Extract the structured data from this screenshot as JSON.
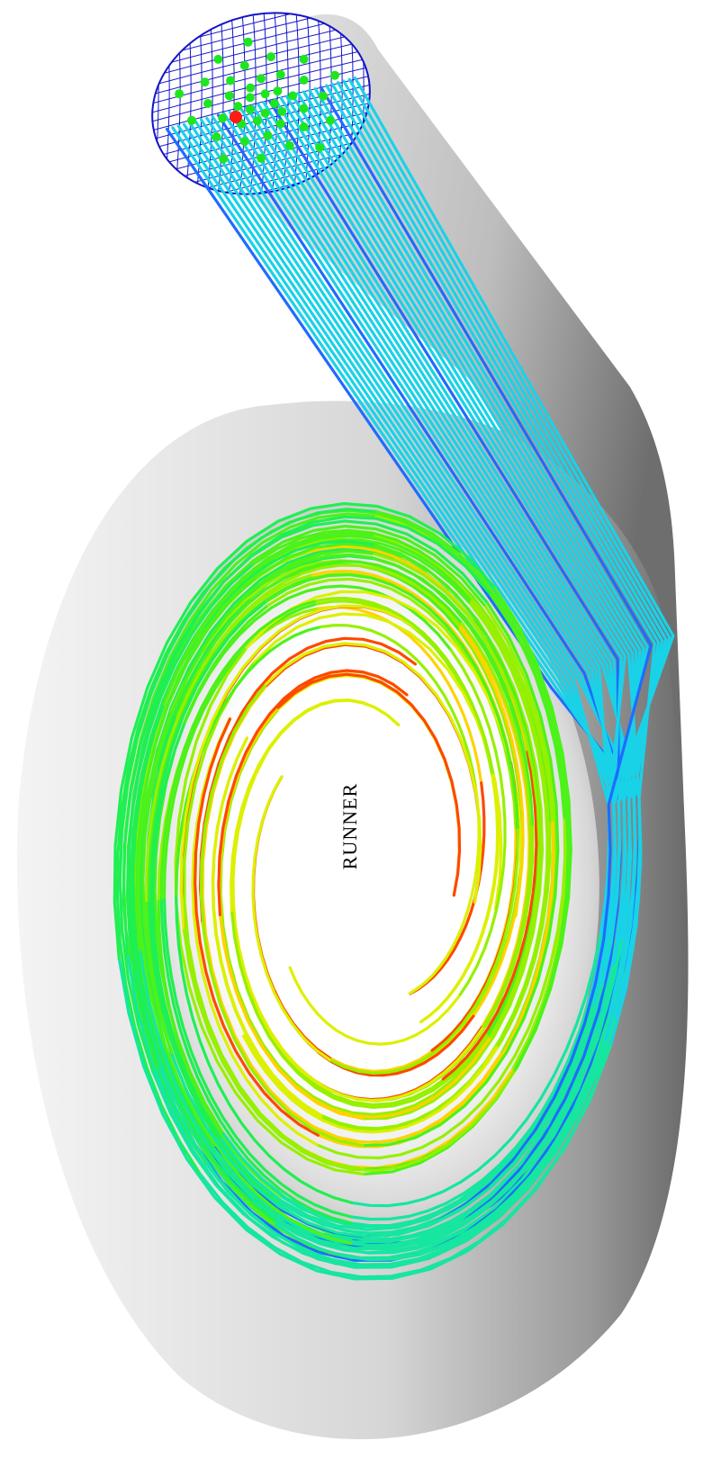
{
  "diagram": {
    "runner_label": "RUNNER",
    "streamline_colors": [
      "#1e6cff",
      "#19d2e8",
      "#16e6a0",
      "#20ef52",
      "#4cf21a",
      "#96f000",
      "#dcf000",
      "#ffd200",
      "#ff9a00",
      "#ff4800"
    ],
    "mesh_color": "#1414c8",
    "seed_point_color": "#1ee61e",
    "origin_marker_color": "#ff1a1a",
    "casing_shades": [
      "#f6f6f6",
      "#e2e2e2",
      "#c9c9c9",
      "#a8a8a8",
      "#8a8a8a",
      "#6e6e6e"
    ]
  }
}
